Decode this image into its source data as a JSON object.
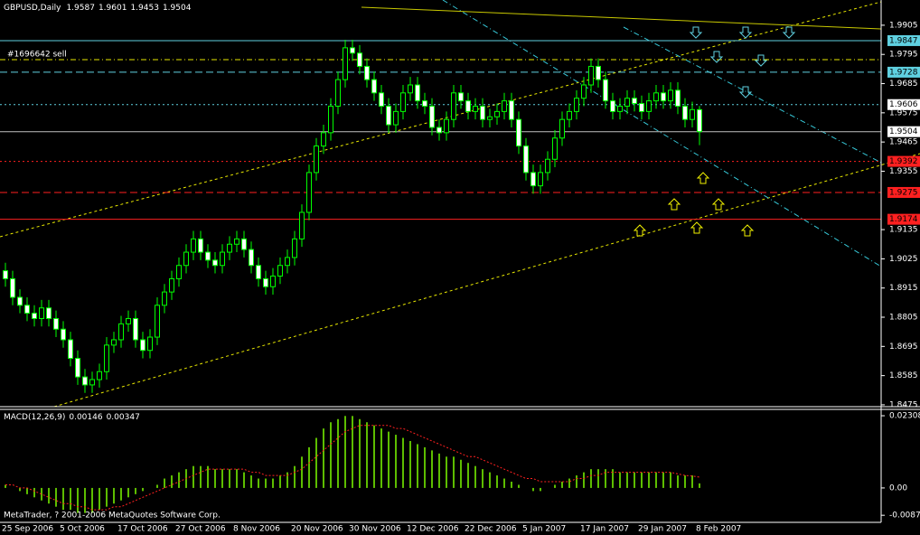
{
  "chart_data": [
    {
      "type": "candlestick",
      "title": "GBPUSD,Daily",
      "annotation": "#1696642 sell",
      "categories": [
        "25 Sep 2006",
        null,
        null,
        null,
        null,
        null,
        null,
        null,
        "5 Oct 2006",
        null,
        null,
        null,
        null,
        null,
        null,
        null,
        "17 Oct 2006",
        null,
        null,
        null,
        null,
        null,
        null,
        null,
        "27 Oct 2006",
        null,
        null,
        null,
        null,
        null,
        null,
        null,
        "8 Nov 2006",
        null,
        null,
        null,
        null,
        null,
        null,
        null,
        "20 Nov 2006",
        null,
        null,
        null,
        null,
        null,
        null,
        null,
        "30 Nov 2006",
        null,
        null,
        null,
        null,
        null,
        null,
        null,
        "12 Dec 2006",
        null,
        null,
        null,
        null,
        null,
        null,
        null,
        "22 Dec 2006",
        null,
        null,
        null,
        null,
        null,
        null,
        null,
        "5 Jan 2007",
        null,
        null,
        null,
        null,
        null,
        null,
        null,
        "17 Jan 2007",
        null,
        null,
        null,
        null,
        null,
        null,
        null,
        "29 Jan 2007",
        null,
        null,
        null,
        null,
        null,
        null,
        null,
        "8 Feb 2007"
      ],
      "open": [
        1.898,
        1.895,
        1.888,
        1.885,
        1.882,
        1.88,
        1.884,
        1.88,
        1.876,
        1.872,
        1.865,
        1.858,
        1.855,
        1.857,
        1.86,
        1.87,
        1.872,
        1.878,
        1.88,
        1.872,
        1.868,
        1.873,
        1.885,
        1.89,
        1.895,
        1.9,
        1.905,
        1.91,
        1.905,
        1.902,
        1.9,
        1.905,
        1.908,
        1.91,
        1.906,
        1.9,
        1.895,
        1.892,
        1.896,
        1.9,
        1.903,
        1.91,
        1.92,
        1.935,
        1.945,
        1.95,
        1.96,
        1.97,
        1.982,
        1.98,
        1.975,
        1.97,
        1.965,
        1.96,
        1.953,
        1.958,
        1.965,
        1.968,
        1.962,
        1.96,
        1.952,
        1.95,
        1.955,
        1.965,
        1.962,
        1.958,
        1.96,
        1.955,
        1.956,
        1.958,
        1.962,
        1.955,
        1.945,
        1.935,
        1.93,
        1.935,
        1.94,
        1.948,
        1.955,
        1.958,
        1.963,
        1.968,
        1.975,
        1.97,
        1.962,
        1.958,
        1.96,
        1.963,
        1.961,
        1.958,
        1.962,
        1.965,
        1.962,
        1.966,
        1.96,
        1.955,
        1.9587
      ],
      "high": [
        1.901,
        1.898,
        1.891,
        1.888,
        1.885,
        1.887,
        1.887,
        1.883,
        1.879,
        1.875,
        1.868,
        1.861,
        1.86,
        1.863,
        1.873,
        1.875,
        1.881,
        1.883,
        1.883,
        1.875,
        1.876,
        1.888,
        1.893,
        1.898,
        1.903,
        1.908,
        1.913,
        1.913,
        1.908,
        1.905,
        1.908,
        1.911,
        1.913,
        1.913,
        1.909,
        1.903,
        1.898,
        1.899,
        1.903,
        1.906,
        1.913,
        1.923,
        1.938,
        1.948,
        1.953,
        1.963,
        1.973,
        1.985,
        1.985,
        1.983,
        1.978,
        1.973,
        1.968,
        1.963,
        1.961,
        1.968,
        1.971,
        1.971,
        1.965,
        1.963,
        1.955,
        1.958,
        1.968,
        1.968,
        1.965,
        1.963,
        1.963,
        1.959,
        1.961,
        1.965,
        1.965,
        1.958,
        1.948,
        1.938,
        1.938,
        1.943,
        1.951,
        1.958,
        1.961,
        1.966,
        1.971,
        1.978,
        1.978,
        1.973,
        1.965,
        1.963,
        1.966,
        1.966,
        1.964,
        1.965,
        1.968,
        1.968,
        1.969,
        1.969,
        1.963,
        1.9617,
        1.9601
      ],
      "low": [
        1.892,
        1.885,
        1.882,
        1.879,
        1.877,
        1.877,
        1.877,
        1.873,
        1.869,
        1.862,
        1.855,
        1.852,
        1.852,
        1.854,
        1.857,
        1.867,
        1.869,
        1.875,
        1.869,
        1.865,
        1.865,
        1.87,
        1.882,
        1.887,
        1.892,
        1.897,
        1.902,
        1.902,
        1.899,
        1.897,
        1.897,
        1.902,
        1.905,
        1.903,
        1.897,
        1.892,
        1.889,
        1.889,
        1.893,
        1.897,
        1.9,
        1.907,
        1.917,
        1.932,
        1.942,
        1.947,
        1.957,
        1.967,
        1.977,
        1.972,
        1.967,
        1.962,
        1.957,
        1.95,
        1.95,
        1.955,
        1.962,
        1.959,
        1.957,
        1.949,
        1.947,
        1.947,
        1.952,
        1.959,
        1.955,
        1.955,
        1.952,
        1.952,
        1.953,
        1.955,
        1.952,
        1.942,
        1.932,
        1.927,
        1.927,
        1.932,
        1.937,
        1.945,
        1.952,
        1.955,
        1.96,
        1.965,
        1.967,
        1.959,
        1.955,
        1.955,
        1.957,
        1.958,
        1.955,
        1.955,
        1.959,
        1.959,
        1.959,
        1.957,
        1.952,
        1.952,
        1.9453
      ],
      "close": [
        1.895,
        1.888,
        1.885,
        1.882,
        1.88,
        1.884,
        1.88,
        1.876,
        1.872,
        1.865,
        1.858,
        1.855,
        1.857,
        1.86,
        1.87,
        1.872,
        1.878,
        1.88,
        1.872,
        1.868,
        1.873,
        1.885,
        1.89,
        1.895,
        1.9,
        1.905,
        1.91,
        1.905,
        1.902,
        1.9,
        1.905,
        1.908,
        1.91,
        1.906,
        1.9,
        1.895,
        1.892,
        1.896,
        1.9,
        1.903,
        1.91,
        1.92,
        1.935,
        1.945,
        1.95,
        1.96,
        1.97,
        1.982,
        1.98,
        1.975,
        1.97,
        1.965,
        1.96,
        1.953,
        1.958,
        1.965,
        1.968,
        1.962,
        1.96,
        1.952,
        1.95,
        1.955,
        1.965,
        1.962,
        1.958,
        1.96,
        1.955,
        1.956,
        1.958,
        1.962,
        1.955,
        1.945,
        1.935,
        1.93,
        1.935,
        1.94,
        1.948,
        1.955,
        1.958,
        1.963,
        1.968,
        1.975,
        1.97,
        1.962,
        1.958,
        1.96,
        1.963,
        1.961,
        1.958,
        1.962,
        1.965,
        1.962,
        1.966,
        1.96,
        1.955,
        1.9587,
        1.9504
      ],
      "color": "#00ff00",
      "up_color": "#000000",
      "down_color": "#ffffff",
      "ylim": [
        1.8468,
        2.0
      ],
      "yticks": [
        1.9905,
        1.9795,
        1.9685,
        1.9575,
        1.9465,
        1.9355,
        1.9135,
        1.9025,
        1.8915,
        1.8805,
        1.8695,
        1.8585,
        1.8475
      ],
      "levels": [
        1.9847,
        1.9728,
        1.9606,
        1.9504,
        1.9392,
        1.9275,
        1.9174
      ],
      "level_colors": [
        "#5fd0e0",
        "#5fd0e0",
        "#5fd0e0",
        "#c0c0c0",
        "#ff2020",
        "#ff2020",
        "#ff2020"
      ],
      "level_label_colors": [
        "#5fd0e0",
        "#5fd0e0",
        "#ffffff",
        "#ffffff",
        "#ff2020",
        "#ff2020",
        "#ff2020"
      ],
      "level_styles": [
        "solid",
        "dashed",
        "dotted",
        "solid",
        "dotted",
        "dashed",
        "solid"
      ]
    },
    {
      "type": "macd",
      "title": "MACD(12,26,9)",
      "values": [
        0.001,
        0,
        -0.001,
        -0.002,
        -0.003,
        -0.004,
        -0.005,
        -0.006,
        -0.007,
        -0.007,
        -0.008,
        -0.008,
        -0.008,
        -0.007,
        -0.006,
        -0.005,
        -0.004,
        -0.003,
        -0.002,
        -0.001,
        0,
        0.001,
        0.003,
        0.004,
        0.005,
        0.006,
        0.007,
        0.007,
        0.007,
        0.006,
        0.006,
        0.006,
        0.006,
        0.005,
        0.004,
        0.003,
        0.003,
        0.003,
        0.004,
        0.005,
        0.007,
        0.01,
        0.013,
        0.016,
        0.019,
        0.021,
        0.022,
        0.023,
        0.023,
        0.022,
        0.021,
        0.02,
        0.019,
        0.018,
        0.017,
        0.016,
        0.015,
        0.014,
        0.013,
        0.012,
        0.011,
        0.01,
        0.01,
        0.009,
        0.008,
        0.007,
        0.006,
        0.005,
        0.004,
        0.003,
        0.002,
        0.001,
        0,
        -0.001,
        -0.001,
        0,
        0.001,
        0.002,
        0.003,
        0.004,
        0.005,
        0.006,
        0.006,
        0.006,
        0.006,
        0.005,
        0.005,
        0.005,
        0.005,
        0.005,
        0.005,
        0.005,
        0.005,
        0.004,
        0.004,
        0.004,
        0.00146
      ],
      "signal": [
        0.001,
        0.001,
        0,
        0,
        -0.001,
        -0.002,
        -0.003,
        -0.004,
        -0.005,
        -0.005,
        -0.006,
        -0.006,
        -0.007,
        -0.007,
        -0.007,
        -0.006,
        -0.006,
        -0.005,
        -0.004,
        -0.003,
        -0.002,
        -0.001,
        0,
        0.001,
        0.002,
        0.003,
        0.004,
        0.005,
        0.006,
        0.006,
        0.006,
        0.006,
        0.006,
        0.006,
        0.005,
        0.005,
        0.004,
        0.004,
        0.004,
        0.004,
        0.005,
        0.006,
        0.008,
        0.01,
        0.012,
        0.014,
        0.016,
        0.018,
        0.019,
        0.02,
        0.02,
        0.02,
        0.02,
        0.02,
        0.019,
        0.019,
        0.018,
        0.017,
        0.016,
        0.015,
        0.014,
        0.013,
        0.012,
        0.011,
        0.01,
        0.01,
        0.009,
        0.008,
        0.007,
        0.006,
        0.005,
        0.004,
        0.003,
        0.003,
        0.002,
        0.002,
        0.002,
        0.002,
        0.002,
        0.003,
        0.003,
        0.004,
        0.004,
        0.005,
        0.005,
        0.005,
        0.005,
        0.005,
        0.005,
        0.005,
        0.005,
        0.005,
        0.005,
        0.0045,
        0.004,
        0.0038,
        0.00347
      ],
      "color": "#7cfc00",
      "signal_color": "#ff2020",
      "ylim": [
        -0.011,
        0.0254
      ],
      "yticks": [
        0.02308,
        {
          "value": 0,
          "label": "0.00"
        },
        -0.00874
      ]
    }
  ],
  "footer": "MetaTrader, ? 2001-2006 MetaQuotes Software Corp."
}
